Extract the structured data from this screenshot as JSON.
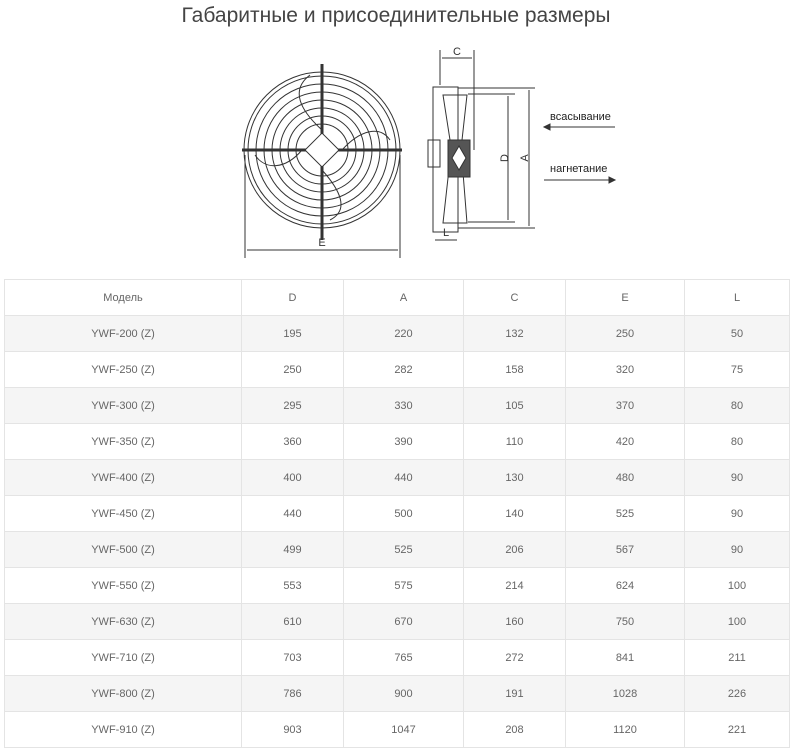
{
  "title": "Габаритные и присоединительные размеры",
  "diagram": {
    "labels": {
      "c": "C",
      "d": "D",
      "a": "A",
      "e": "E",
      "l": "L",
      "suction": "всасывание",
      "discharge": "нагнетание"
    }
  },
  "table": {
    "headers": [
      "Модель",
      "D",
      "A",
      "C",
      "E",
      "L"
    ],
    "rows": [
      [
        "YWF-200 (Z)",
        "195",
        "220",
        "132",
        "250",
        "50"
      ],
      [
        "YWF-250 (Z)",
        "250",
        "282",
        "158",
        "320",
        "75"
      ],
      [
        "YWF-300 (Z)",
        "295",
        "330",
        "105",
        "370",
        "80"
      ],
      [
        "YWF-350 (Z)",
        "360",
        "390",
        "110",
        "420",
        "80"
      ],
      [
        "YWF-400 (Z)",
        "400",
        "440",
        "130",
        "480",
        "90"
      ],
      [
        "YWF-450 (Z)",
        "440",
        "500",
        "140",
        "525",
        "90"
      ],
      [
        "YWF-500 (Z)",
        "499",
        "525",
        "206",
        "567",
        "90"
      ],
      [
        "YWF-550 (Z)",
        "553",
        "575",
        "214",
        "624",
        "100"
      ],
      [
        "YWF-630 (Z)",
        "610",
        "670",
        "160",
        "750",
        "100"
      ],
      [
        "YWF-710 (Z)",
        "703",
        "765",
        "272",
        "841",
        "211"
      ],
      [
        "YWF-800 (Z)",
        "786",
        "900",
        "191",
        "1028",
        "226"
      ],
      [
        "YWF-910 (Z)",
        "903",
        "1047",
        "208",
        "1120",
        "221"
      ]
    ]
  }
}
